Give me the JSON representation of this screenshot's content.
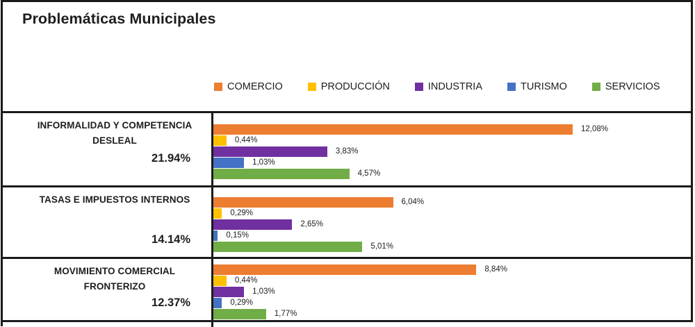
{
  "title": "Problemáticas Municipales",
  "colors": {
    "border": "#1a1a1a",
    "text": "#1d1d1d",
    "background": "#ffffff"
  },
  "chart_data": {
    "type": "bar",
    "orientation": "horizontal",
    "title": "Problemáticas Municipales",
    "legend_position": "top",
    "grid": false,
    "xlim": [
      0,
      16
    ],
    "value_format": "percent, comma decimal",
    "categories": [
      "INFORMALIDAD Y COMPETENCIA DESLEAL",
      "TASAS E IMPUESTOS INTERNOS",
      "MOVIMIENTO COMERCIAL FRONTERIZO"
    ],
    "category_totals": [
      "21.94%",
      "14.14%",
      "12.37%"
    ],
    "series": [
      {
        "name": "COMERCIO",
        "color": "#ED7D31",
        "values": [
          12.08,
          6.04,
          8.84
        ],
        "value_labels": [
          "12,08%",
          "6,04%",
          "8,84%"
        ]
      },
      {
        "name": "PRODUCCIÓN",
        "color": "#FFC000",
        "values": [
          0.44,
          0.29,
          0.44
        ],
        "value_labels": [
          "0,44%",
          "0,29%",
          "0,44%"
        ]
      },
      {
        "name": "INDUSTRIA",
        "color": "#7030A0",
        "values": [
          3.83,
          2.65,
          1.03
        ],
        "value_labels": [
          "3,83%",
          "2,65%",
          "1,03%"
        ]
      },
      {
        "name": "TURISMO",
        "color": "#4472C4",
        "values": [
          1.03,
          0.15,
          0.29
        ],
        "value_labels": [
          "1,03%",
          "0,15%",
          "0,29%"
        ]
      },
      {
        "name": "SERVICIOS",
        "color": "#70AD47",
        "values": [
          4.57,
          5.01,
          1.77
        ],
        "value_labels": [
          "4,57%",
          "5,01%",
          "1,77%"
        ]
      }
    ]
  }
}
